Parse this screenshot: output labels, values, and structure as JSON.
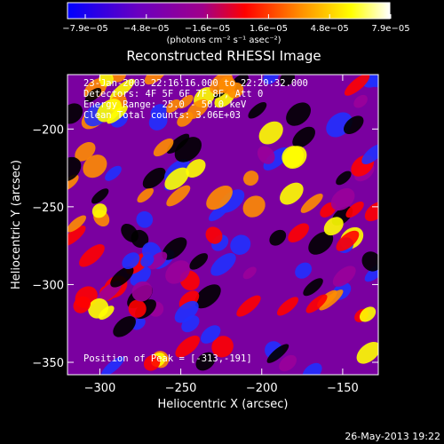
{
  "chart_data": {
    "type": "heatmap",
    "title": "Reconstructed RHESSI Image",
    "xlabel": "Heliocentric X (arcsec)",
    "ylabel": "Heliocentric Y (arcsec)",
    "xlim": [
      -320,
      -128
    ],
    "ylim": [
      -358,
      -165
    ],
    "x_ticks": [
      -300,
      -250,
      -200,
      -150
    ],
    "x_tick_labels": [
      "−300",
      "−250",
      "−200",
      "−150"
    ],
    "y_ticks": [
      -200,
      -250,
      -300,
      -350
    ],
    "y_tick_labels": [
      "−200",
      "−250",
      "−300",
      "−350"
    ],
    "colorbar": {
      "min": -7.9e-05,
      "max": 7.9e-05,
      "tick_labels": [
        "−7.9e−05",
        "−4.8e−05",
        "−1.6e−05",
        "1.6e−05",
        "4.8e−05",
        "7.9e−05"
      ],
      "units_label": "(photons cm⁻² s⁻¹ asec⁻²)",
      "colors": [
        "#0000ff",
        "#5a00c8",
        "#9a009a",
        "#ff0000",
        "#ff8c00",
        "#ffff00",
        "#ffffff"
      ]
    },
    "peak": [
      -313,
      -191
    ],
    "annotations": {
      "time": "23-Jan-2003 22:16:16.000 to 22:20:32.000",
      "detectors": "Detectors: 4F 5F 6F 7F 8F, Att 0",
      "energy": "Energy Range: 25.0 - 50.0 keV",
      "method": "Clean     Total counts: 3.06E+03",
      "peak_text": "Position of Peak = [-313,-191]"
    }
  },
  "footer": {
    "timestamp": "26-May-2013 19:22"
  }
}
